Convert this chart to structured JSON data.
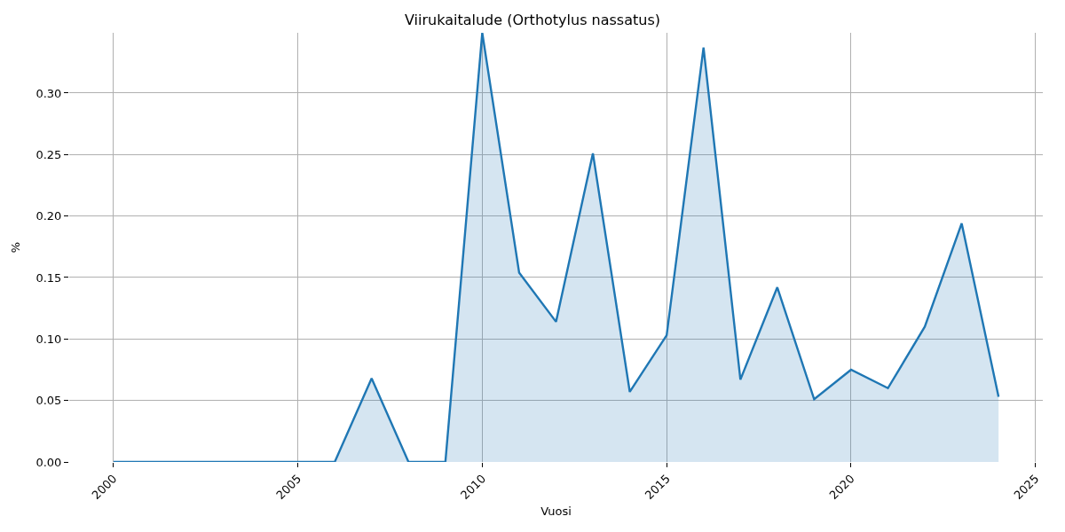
{
  "chart_data": {
    "type": "area",
    "title": "Viirukaitalude (Orthotylus nassatus)",
    "xlabel": "Vuosi",
    "ylabel": "%",
    "x": [
      2000,
      2001,
      2002,
      2003,
      2004,
      2005,
      2006,
      2007,
      2008,
      2009,
      2010,
      2011,
      2012,
      2013,
      2014,
      2015,
      2016,
      2017,
      2018,
      2019,
      2020,
      2021,
      2022,
      2023,
      2024
    ],
    "series": [
      {
        "color": "#1f77b4",
        "values": [
          0,
          0,
          0,
          0,
          0,
          0,
          0,
          0.068,
          0,
          0,
          0.349,
          0.154,
          0.114,
          0.251,
          0.057,
          0.103,
          0.337,
          0.067,
          0.142,
          0.051,
          0.075,
          0.06,
          0.11,
          0.194,
          0.053
        ]
      }
    ],
    "xlim": [
      1998.8,
      2025.2
    ],
    "ylim": [
      0,
      0.349
    ],
    "xticks": [
      2000,
      2005,
      2010,
      2015,
      2020,
      2025
    ],
    "yticks": [
      {
        "value": 0,
        "label": "0.00"
      },
      0.05,
      {
        "value": 0.1,
        "label": "0.10"
      },
      0.15,
      {
        "value": 0.2,
        "label": "0.20"
      },
      0.25,
      {
        "value": 0.3,
        "label": "0.30"
      }
    ],
    "grid": true
  }
}
